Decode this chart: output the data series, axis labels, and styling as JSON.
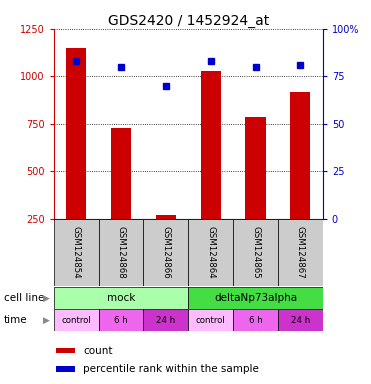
{
  "title": "GDS2420 / 1452924_at",
  "samples": [
    "GSM124854",
    "GSM124868",
    "GSM124866",
    "GSM124864",
    "GSM124865",
    "GSM124867"
  ],
  "counts": [
    1150,
    730,
    270,
    1030,
    785,
    920
  ],
  "percentile_ranks": [
    83,
    80,
    70,
    83,
    80,
    81
  ],
  "left_ylim": [
    250,
    1250
  ],
  "right_ylim": [
    0,
    100
  ],
  "left_yticks": [
    250,
    500,
    750,
    1000,
    1250
  ],
  "right_yticks": [
    0,
    25,
    50,
    75,
    100
  ],
  "right_yticklabels": [
    "0",
    "25",
    "50",
    "75",
    "100%"
  ],
  "bar_color": "#cc0000",
  "dot_color": "#0000cc",
  "cell_line_labels": [
    "mock",
    "deltaNp73alpha"
  ],
  "cell_line_spans": [
    [
      0,
      3
    ],
    [
      3,
      6
    ]
  ],
  "cell_line_colors": [
    "#aaffaa",
    "#44dd44"
  ],
  "time_labels": [
    "control",
    "6 h",
    "24 h",
    "control",
    "6 h",
    "24 h"
  ],
  "time_colors": [
    "#ffbbff",
    "#ee66ee",
    "#cc33cc",
    "#ffbbff",
    "#ee66ee",
    "#cc33cc"
  ],
  "sample_box_color": "#cccccc",
  "title_fontsize": 10,
  "tick_fontsize": 7,
  "legend_fontsize": 7.5
}
